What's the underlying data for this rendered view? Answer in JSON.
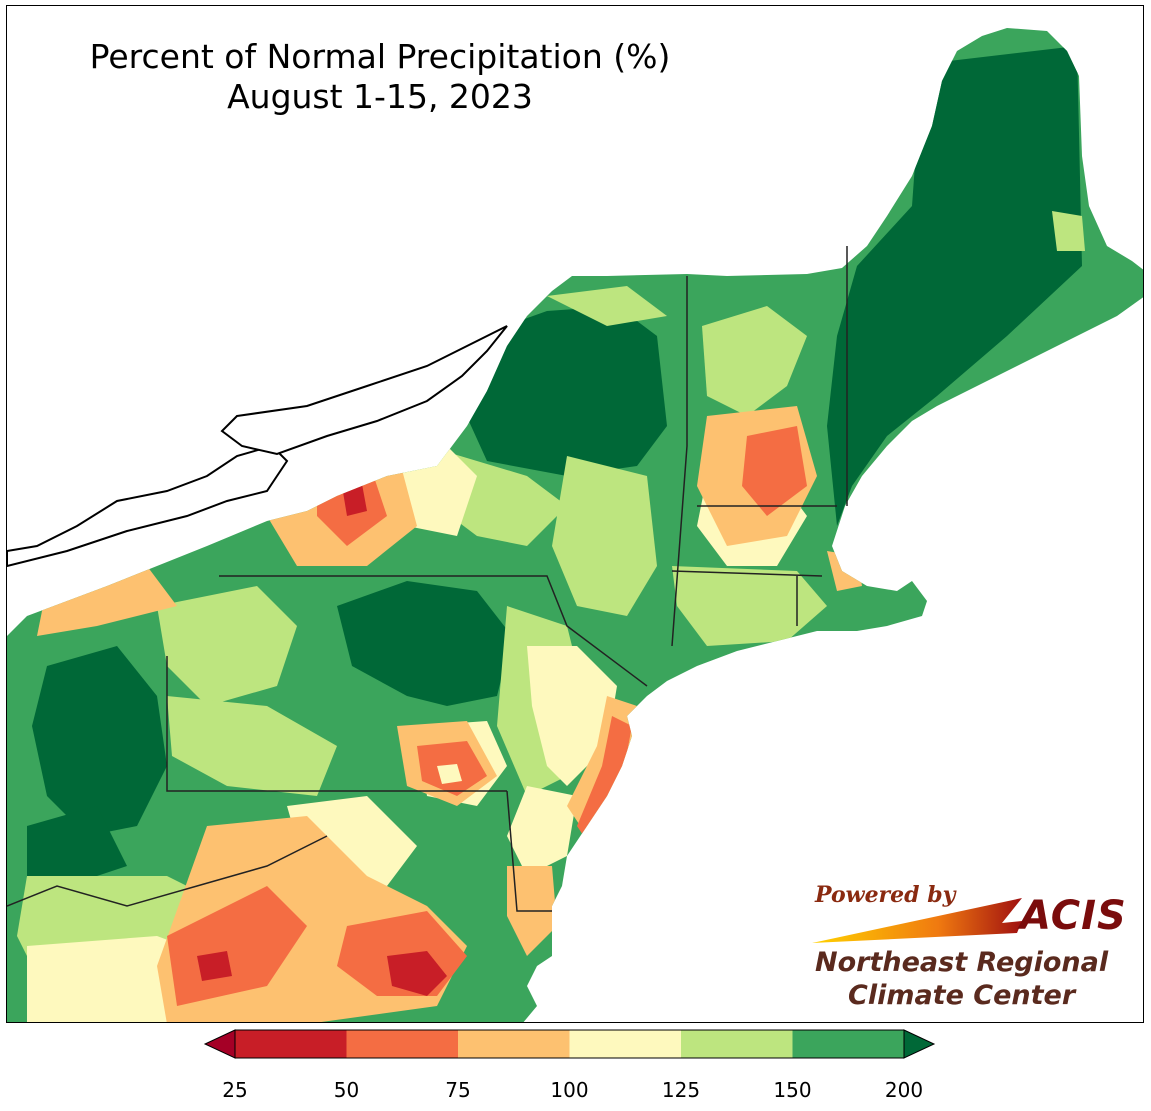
{
  "title": {
    "line1": "Percent of Normal Precipitation (%)",
    "line2": "August 1-15, 2023"
  },
  "credit": {
    "powered_by": "Powered by",
    "acis": "ACIS",
    "org_line1": "Northeast Regional",
    "org_line2": "Climate Center"
  },
  "legend": {
    "bins": [
      {
        "from": 25,
        "to": 50,
        "color": "#c81e27"
      },
      {
        "from": 50,
        "to": 75,
        "color": "#f46d43"
      },
      {
        "from": 75,
        "to": 100,
        "color": "#fdc170"
      },
      {
        "from": 100,
        "to": 125,
        "color": "#fef9be"
      },
      {
        "from": 125,
        "to": 150,
        "color": "#bde57f"
      },
      {
        "from": 150,
        "to": 200,
        "color": "#3ba55c"
      }
    ],
    "under_color": "#a50026",
    "over_color": "#006837",
    "tick_labels": [
      "25",
      "50",
      "75",
      "100",
      "125",
      "150",
      "200"
    ]
  }
}
